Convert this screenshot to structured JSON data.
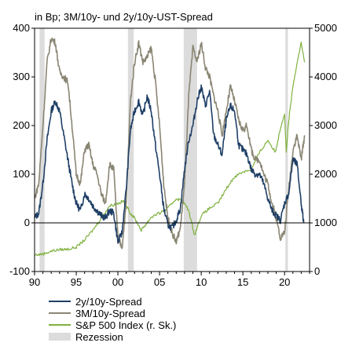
{
  "chart_data": {
    "type": "line",
    "title": "in Bp; 3M/10y- und 2y/10y-UST-Spread",
    "xlim": [
      1990,
      2023
    ],
    "ylim_left": [
      -100,
      400
    ],
    "ylim_right": [
      0,
      5000
    ],
    "x_ticks": [
      1990,
      1995,
      2000,
      2005,
      2010,
      2015,
      2020
    ],
    "x_tick_labels": [
      "90",
      "95",
      "00",
      "05",
      "10",
      "15",
      "20"
    ],
    "y_left_ticks": [
      -100,
      0,
      100,
      200,
      300,
      400
    ],
    "y_left_tick_labels": [
      "-100",
      "0",
      "100",
      "200",
      "300",
      "400"
    ],
    "y_right_ticks": [
      0,
      1000,
      2000,
      3000,
      4000,
      5000
    ],
    "y_right_tick_labels": [
      "0",
      "1000",
      "2000",
      "3000",
      "4000",
      "5000"
    ],
    "recessions": [
      [
        1990.6,
        1991.2
      ],
      [
        2001.2,
        2001.9
      ],
      [
        2007.9,
        2009.5
      ],
      [
        2020.1,
        2020.4
      ]
    ],
    "colors": {
      "spread_2y10y": "#1f3f66",
      "spread_3m10y": "#8a8674",
      "sp500": "#7fb13f",
      "recession": "#dcdcdc"
    },
    "legend": [
      {
        "label": "2y/10y-Spread",
        "kind": "line",
        "color": "#1f3f66"
      },
      {
        "label": "3M/10y-Spread",
        "kind": "line",
        "color": "#8a8674"
      },
      {
        "label": "S&P 500 Index (r. Sk.)",
        "kind": "line",
        "color": "#7fb13f"
      },
      {
        "label": "Rezession",
        "kind": "band",
        "color": "#dcdcdc"
      }
    ],
    "series": [
      {
        "name": "2y/10y-Spread",
        "axis": "left",
        "x": [
          1990.0,
          1990.5,
          1991.0,
          1991.5,
          1992.0,
          1992.5,
          1993.0,
          1993.5,
          1994.0,
          1994.5,
          1995.0,
          1995.5,
          1996.0,
          1996.5,
          1997.0,
          1997.5,
          1998.0,
          1998.5,
          1999.0,
          1999.5,
          2000.0,
          2000.5,
          2001.0,
          2001.5,
          2002.0,
          2002.5,
          2003.0,
          2003.5,
          2004.0,
          2004.5,
          2005.0,
          2005.5,
          2006.0,
          2006.5,
          2007.0,
          2007.5,
          2008.0,
          2008.5,
          2009.0,
          2009.5,
          2010.0,
          2010.5,
          2011.0,
          2011.5,
          2012.0,
          2012.5,
          2013.0,
          2013.5,
          2014.0,
          2014.5,
          2015.0,
          2015.5,
          2016.0,
          2016.5,
          2017.0,
          2017.5,
          2018.0,
          2018.5,
          2019.0,
          2019.5,
          2020.0,
          2020.5,
          2021.0,
          2021.5,
          2022.0,
          2022.3
        ],
        "values": [
          10,
          20,
          80,
          170,
          230,
          250,
          230,
          180,
          130,
          80,
          40,
          25,
          60,
          50,
          35,
          25,
          15,
          10,
          25,
          20,
          -40,
          -20,
          70,
          190,
          230,
          250,
          220,
          260,
          230,
          160,
          100,
          30,
          -5,
          -10,
          5,
          30,
          110,
          170,
          200,
          250,
          280,
          240,
          270,
          180,
          160,
          140,
          210,
          240,
          230,
          160,
          150,
          140,
          110,
          100,
          100,
          80,
          50,
          25,
          15,
          5,
          40,
          60,
          130,
          120,
          40,
          0
        ]
      },
      {
        "name": "3M/10y-Spread",
        "axis": "left",
        "x": [
          1990.0,
          1990.5,
          1991.0,
          1991.5,
          1992.0,
          1992.5,
          1993.0,
          1993.5,
          1994.0,
          1994.5,
          1995.0,
          1995.5,
          1996.0,
          1996.5,
          1997.0,
          1997.5,
          1998.0,
          1998.5,
          1999.0,
          1999.5,
          2000.0,
          2000.5,
          2001.0,
          2001.5,
          2002.0,
          2002.5,
          2003.0,
          2003.5,
          2004.0,
          2004.5,
          2005.0,
          2005.5,
          2006.0,
          2006.5,
          2007.0,
          2007.5,
          2008.0,
          2008.5,
          2009.0,
          2009.5,
          2010.0,
          2010.5,
          2011.0,
          2011.5,
          2012.0,
          2012.5,
          2013.0,
          2013.5,
          2014.0,
          2014.5,
          2015.0,
          2015.5,
          2016.0,
          2016.5,
          2017.0,
          2017.5,
          2018.0,
          2018.5,
          2019.0,
          2019.5,
          2020.0,
          2020.5,
          2021.0,
          2021.5,
          2022.0,
          2022.4
        ],
        "values": [
          50,
          80,
          200,
          330,
          380,
          370,
          310,
          300,
          290,
          200,
          100,
          80,
          150,
          160,
          120,
          100,
          60,
          40,
          120,
          110,
          -30,
          -50,
          40,
          250,
          330,
          370,
          330,
          340,
          360,
          290,
          200,
          80,
          10,
          -20,
          -40,
          -10,
          80,
          260,
          360,
          330,
          370,
          320,
          300,
          260,
          230,
          180,
          230,
          280,
          250,
          210,
          190,
          200,
          150,
          130,
          130,
          100,
          80,
          40,
          10,
          -30,
          -20,
          70,
          150,
          180,
          130,
          180
        ]
      },
      {
        "name": "S&P 500 Index (r. Sk.)",
        "axis": "right",
        "x": [
          1990.0,
          1991.0,
          1992.0,
          1993.0,
          1994.0,
          1995.0,
          1996.0,
          1997.0,
          1998.0,
          1999.0,
          2000.0,
          2000.7,
          2001.5,
          2002.0,
          2002.8,
          2003.5,
          2004.0,
          2005.0,
          2006.0,
          2007.0,
          2007.8,
          2008.5,
          2009.2,
          2010.0,
          2011.0,
          2012.0,
          2013.0,
          2014.0,
          2015.0,
          2016.0,
          2017.0,
          2018.0,
          2018.9,
          2019.5,
          2020.0,
          2020.2,
          2020.5,
          2021.0,
          2021.5,
          2022.0,
          2022.4
        ],
        "values": [
          340,
          360,
          420,
          450,
          460,
          500,
          650,
          850,
          1100,
          1350,
          1400,
          1450,
          1200,
          1100,
          850,
          1000,
          1120,
          1200,
          1300,
          1500,
          1450,
          1250,
          750,
          1150,
          1300,
          1400,
          1700,
          1950,
          2050,
          2100,
          2450,
          2700,
          2450,
          2950,
          3250,
          2450,
          3100,
          3800,
          4300,
          4700,
          4300
        ]
      }
    ]
  }
}
